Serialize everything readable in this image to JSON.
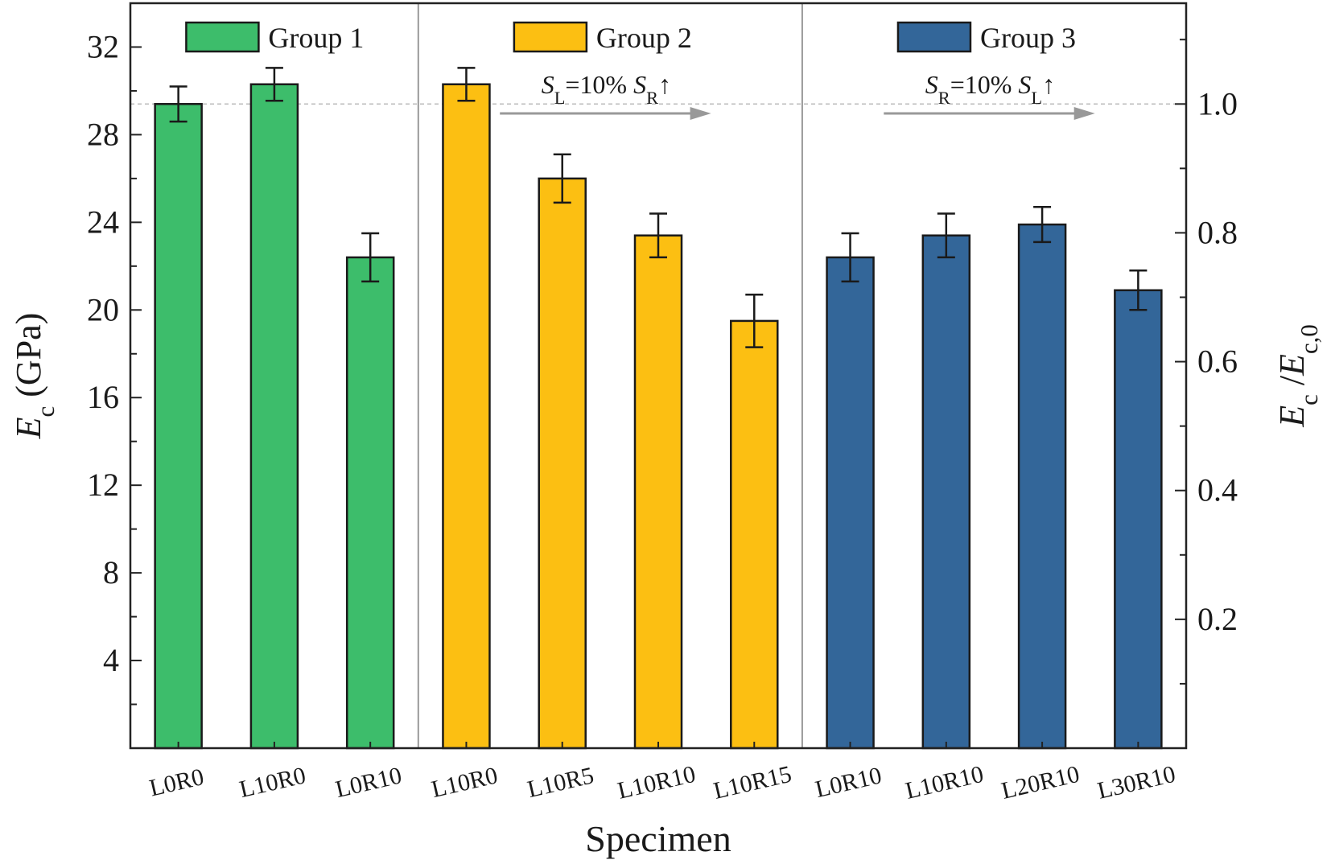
{
  "chart_data": {
    "type": "bar",
    "title": "",
    "xlabel": "Specimen",
    "ylabel": {
      "main": "E",
      "sub": "c",
      "unit": " (GPa)"
    },
    "y2label": {
      "a": "E",
      "a_sub": "c",
      "sep": " /",
      "b": "E",
      "b_sub": "c,0"
    },
    "ylim": [
      0,
      34
    ],
    "yticks": [
      4,
      8,
      12,
      16,
      20,
      24,
      28,
      32
    ],
    "y_tick_labels": [
      "4",
      "8",
      "12",
      "16",
      "20",
      "24",
      "28",
      "32"
    ],
    "y2_ref": 29.4,
    "y2ticks": [
      0.2,
      0.4,
      0.6,
      0.8,
      1.0
    ],
    "y2_tick_labels": [
      "0.2",
      "0.4",
      "0.6",
      "0.8",
      "1.0"
    ],
    "reference_line": 29.4,
    "groups": [
      {
        "name": "Group 1",
        "color": "#3dbd6b",
        "categories": [
          "L0R0",
          "L10R0",
          "L0R10"
        ],
        "values": [
          29.4,
          30.3,
          22.4
        ],
        "errors": [
          0.8,
          0.75,
          1.1
        ],
        "annotation": null
      },
      {
        "name": "Group 2",
        "color": "#fcbf12",
        "categories": [
          "L10R0",
          "L10R5",
          "L10R10",
          "L10R15"
        ],
        "values": [
          30.3,
          26.0,
          23.4,
          19.5
        ],
        "errors": [
          0.75,
          1.1,
          1.0,
          1.2
        ],
        "annotation": {
          "a": "S",
          "a_sub": "L",
          "a_val": "=10%",
          "b": "S",
          "b_sub": "R",
          "b_arrow": "↑"
        }
      },
      {
        "name": "Group 3",
        "color": "#336699",
        "categories": [
          "L0R10",
          "L10R10",
          "L20R10",
          "L30R10"
        ],
        "values": [
          22.4,
          23.4,
          23.9,
          20.9
        ],
        "errors": [
          1.1,
          1.0,
          0.8,
          0.9
        ],
        "annotation": {
          "a": "S",
          "a_sub": "R",
          "a_val": "=10%",
          "b": "S",
          "b_sub": "L",
          "b_arrow": "↑"
        }
      }
    ]
  },
  "colors": {
    "axis": "#222222",
    "bar_edge": "#1a1a1a",
    "divider": "#999999",
    "ref_line": "#bbbbbb",
    "arrow": "#999999"
  }
}
